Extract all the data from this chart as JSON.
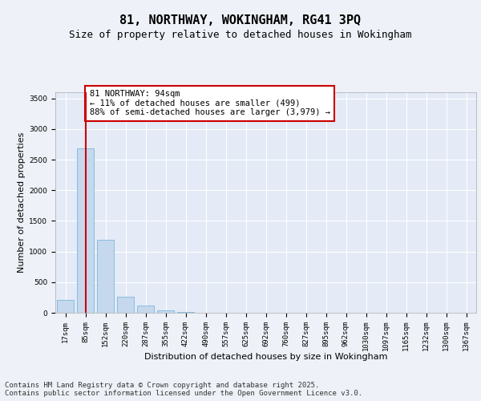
{
  "title1": "81, NORTHWAY, WOKINGHAM, RG41 3PQ",
  "title2": "Size of property relative to detached houses in Wokingham",
  "xlabel": "Distribution of detached houses by size in Wokingham",
  "ylabel": "Number of detached properties",
  "categories": [
    "17sqm",
    "85sqm",
    "152sqm",
    "220sqm",
    "287sqm",
    "355sqm",
    "422sqm",
    "490sqm",
    "557sqm",
    "625sqm",
    "692sqm",
    "760sqm",
    "827sqm",
    "895sqm",
    "962sqm",
    "1030sqm",
    "1097sqm",
    "1165sqm",
    "1232sqm",
    "1300sqm",
    "1367sqm"
  ],
  "values": [
    210,
    2680,
    1190,
    265,
    120,
    45,
    18,
    0,
    0,
    0,
    0,
    0,
    0,
    0,
    0,
    0,
    0,
    0,
    0,
    0,
    0
  ],
  "bar_color": "#c5d8ed",
  "bar_edge_color": "#6aaed6",
  "highlight_bar_index": 1,
  "highlight_line_color": "#cc0000",
  "annotation_text": "81 NORTHWAY: 94sqm\n← 11% of detached houses are smaller (499)\n88% of semi-detached houses are larger (3,979) →",
  "annotation_box_color": "#ffffff",
  "annotation_box_edge_color": "#cc0000",
  "ylim": [
    0,
    3600
  ],
  "yticks": [
    0,
    500,
    1000,
    1500,
    2000,
    2500,
    3000,
    3500
  ],
  "bg_color": "#eef2f8",
  "plot_bg_color": "#e4eaf6",
  "grid_color": "#ffffff",
  "footer_text": "Contains HM Land Registry data © Crown copyright and database right 2025.\nContains public sector information licensed under the Open Government Licence v3.0.",
  "title1_fontsize": 11,
  "title2_fontsize": 9,
  "xlabel_fontsize": 8,
  "ylabel_fontsize": 8,
  "tick_fontsize": 6.5,
  "annotation_fontsize": 7.5,
  "footer_fontsize": 6.5
}
